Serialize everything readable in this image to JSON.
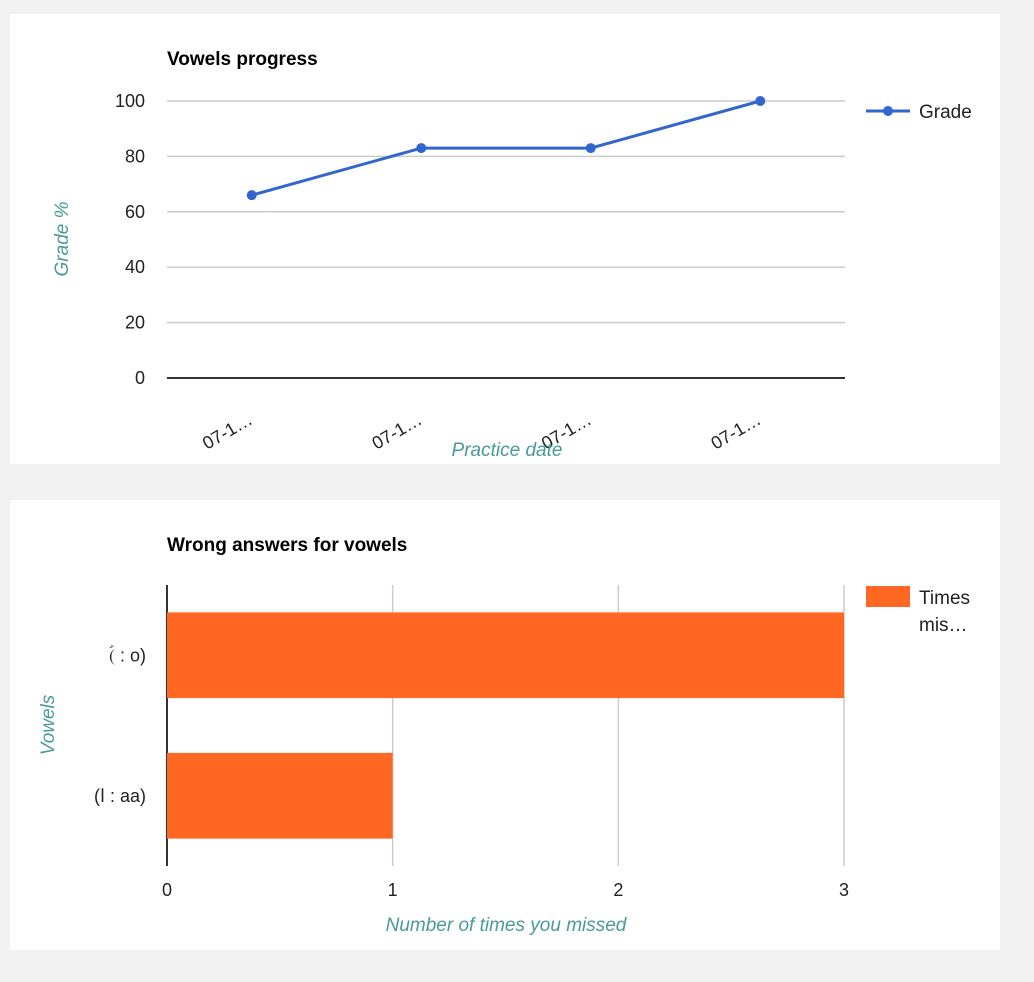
{
  "colors": {
    "line_series": "#3366cc",
    "bar_series": "#ff6723",
    "axis_title": "#4a9a9a",
    "gridline": "#cccccc",
    "baseline": "#333333"
  },
  "chart_data": [
    {
      "type": "line",
      "title": "Vowels progress",
      "xlabel": "Practice date",
      "ylabel": "Grade %",
      "categories": [
        "07-1…",
        "07-1…",
        "07-1…",
        "07-1…"
      ],
      "series": [
        {
          "name": "Grade",
          "values": [
            66,
            83,
            83,
            100
          ]
        }
      ],
      "ylim": [
        0,
        100
      ],
      "yticks": [
        "0",
        "20",
        "40",
        "60",
        "80",
        "100"
      ],
      "grid": true,
      "legend": "right"
    },
    {
      "type": "bar",
      "orientation": "horizontal",
      "title": "Wrong answers for vowels",
      "xlabel": "Number of times you missed",
      "ylabel": "Vowels",
      "categories": [
        "(ؑ : o)",
        "(ا : aa)"
      ],
      "series": [
        {
          "name": "Times mis…",
          "values": [
            3,
            1
          ]
        }
      ],
      "xlim": [
        0,
        3
      ],
      "xticks": [
        "0",
        "1",
        "2",
        "3"
      ],
      "legend_lines": [
        "Times",
        "mis…"
      ],
      "grid": true,
      "legend": "right"
    }
  ]
}
